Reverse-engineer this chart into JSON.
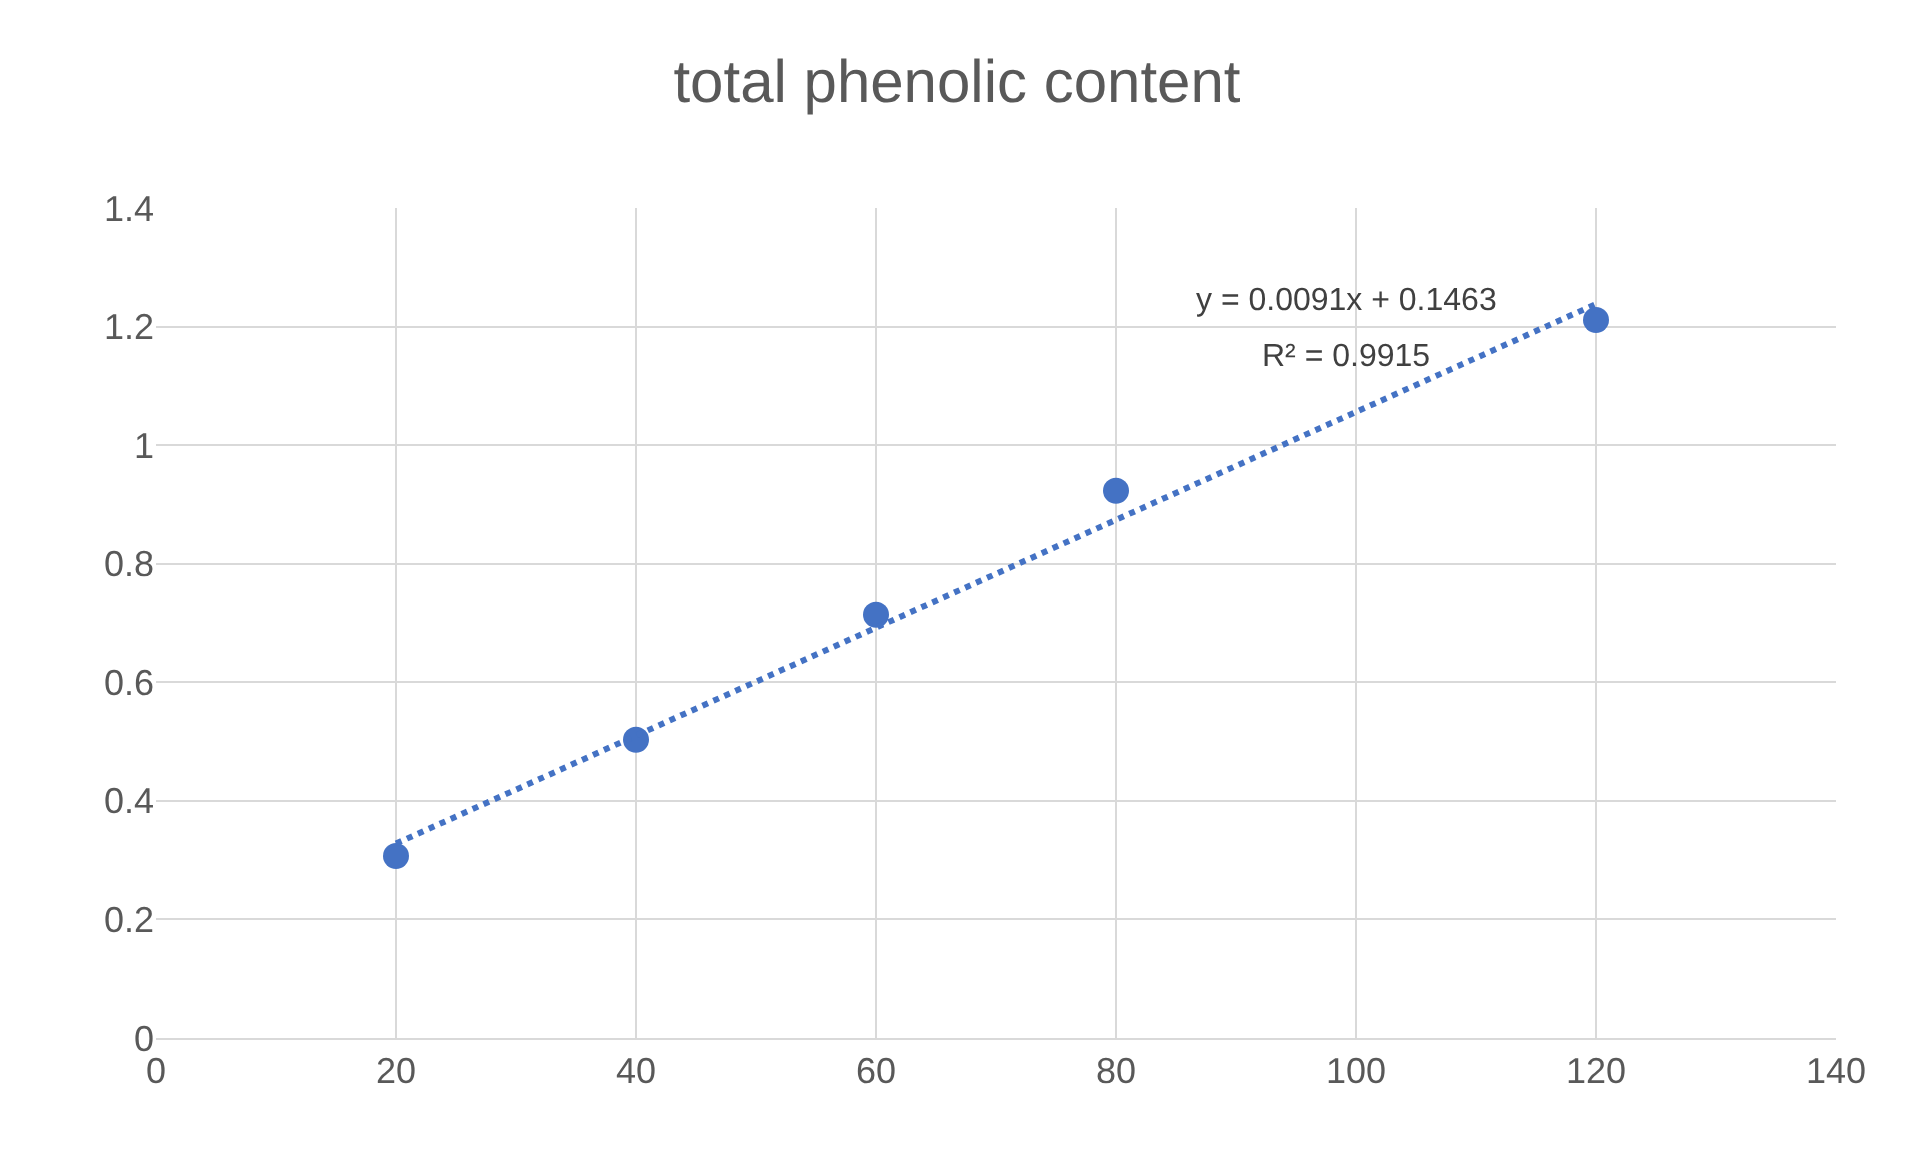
{
  "chart_data": {
    "type": "scatter",
    "title": "total phenolic content",
    "x": [
      20,
      40,
      60,
      80,
      120
    ],
    "series": [
      {
        "color": "#4472c4",
        "values": [
          0.307,
          0.503,
          0.714,
          0.923,
          1.211
        ],
        "marker": "circle"
      },
      {
        "type": "line",
        "color": "#4472c4",
        "x": [
          20,
          120
        ],
        "values": [
          0.328,
          1.238
        ],
        "marker": "none",
        "line_style": "dotted"
      }
    ],
    "annotations": [
      "y = 0.0091x + 0.1463",
      "R² = 0.9915"
    ],
    "xlim": [
      0,
      140
    ],
    "xticks": [
      0,
      20,
      40,
      60,
      80,
      100,
      120,
      140
    ],
    "ylim": [
      0,
      1.4
    ],
    "yticks": [
      0,
      0.2,
      0.4,
      0.6,
      0.8,
      1,
      1.2,
      1.4
    ],
    "grid": true
  }
}
